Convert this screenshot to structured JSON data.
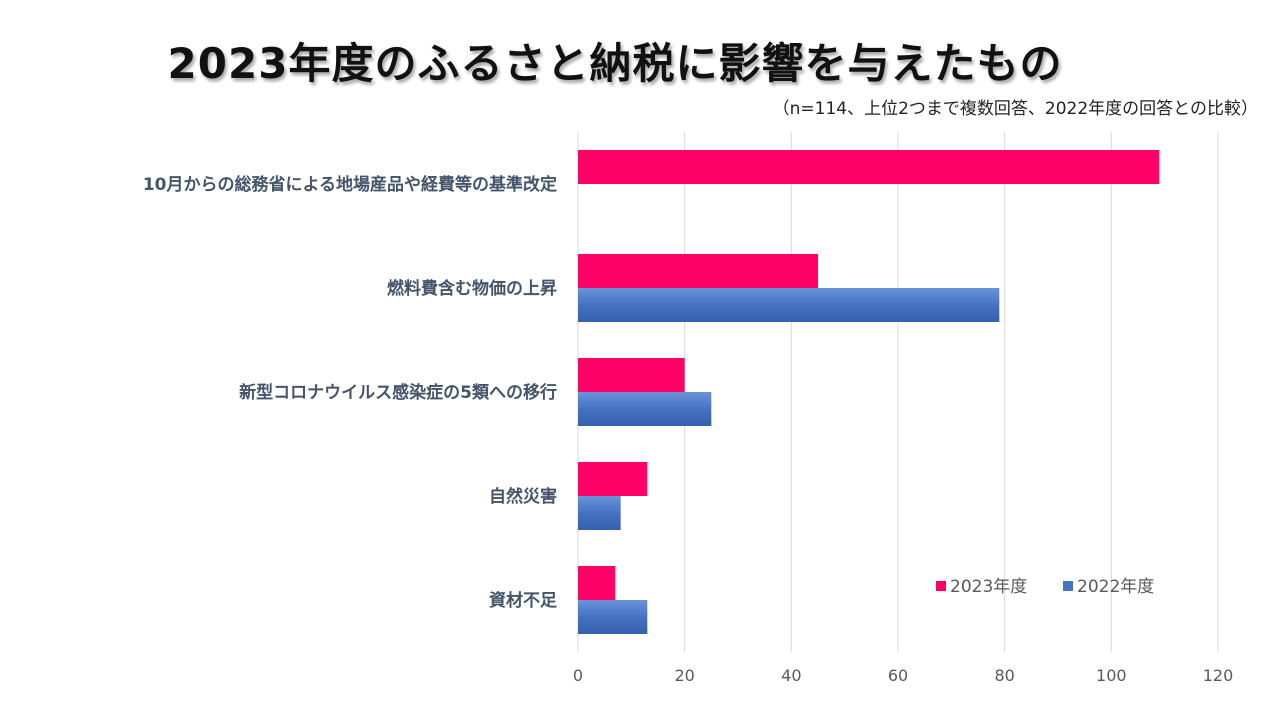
{
  "page": {
    "title": "2023年度のふるさと納税に影響を与えたもの",
    "subtitle": "（n=114、上位2つまで複数回答、2022年度の回答との比較）"
  },
  "chart_data": {
    "type": "bar",
    "orientation": "horizontal",
    "title": "2023年度のふるさと納税に影響を与えたもの",
    "subtitle": "（n=114、上位2つまで複数回答、2022年度の回答との比較）",
    "categories": [
      "10月からの総務省による地場産品や経費等の基準改定",
      "燃料費含む物価の上昇",
      "新型コロナウイルス感染症の5類への移行",
      "自然災害",
      "資材不足"
    ],
    "series": [
      {
        "name": "2023年度",
        "color": "#ff0066",
        "values": [
          109,
          45,
          20,
          13,
          7
        ]
      },
      {
        "name": "2022年度",
        "color": "#4472c4",
        "values": [
          null,
          79,
          25,
          8,
          13
        ]
      }
    ],
    "xlim": [
      0,
      120
    ],
    "xticks": [
      0,
      20,
      40,
      60,
      80,
      100,
      120
    ],
    "grid": true,
    "legend_position": "bottom-right"
  }
}
